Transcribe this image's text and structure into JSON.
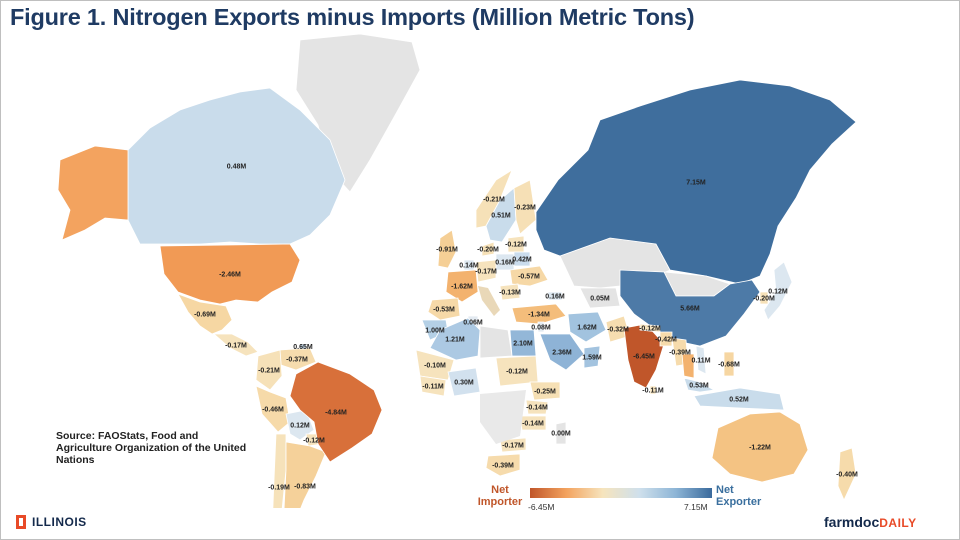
{
  "title": "Figure 1. Nitrogen Exports minus Imports (Million Metric Tons)",
  "source": "Source:  FAOStats,  Food and Agriculture Organization of the United Nations",
  "legend": {
    "min_title": "Net Importer",
    "max_title": "Net Exporter",
    "min_value": "-6.45M",
    "max_value": "7.15M",
    "colors": [
      "#c0562a",
      "#f3a35f",
      "#f6e4bd",
      "#cfe0ec",
      "#8db5d6",
      "#3a6a9c"
    ]
  },
  "colors": {
    "no_data": "#e4e4e4",
    "title": "#1f3b63",
    "importer": "#c0562a",
    "exporter": "#3a6a9c",
    "ocean": "#ffffff"
  },
  "logos": {
    "left": "ILLINOIS",
    "right_part1": "farmdoc",
    "right_part2": "DAILY"
  },
  "regions": [
    {
      "name": "Canada",
      "value": "0.48M",
      "color": "#c9dceb"
    },
    {
      "name": "Alaska",
      "value": "",
      "color": "#f3a35f"
    },
    {
      "name": "United States",
      "value": "-2.46M",
      "color": "#f19a55"
    },
    {
      "name": "Mexico",
      "value": "-0.69M",
      "color": "#f6d7a3"
    },
    {
      "name": "Central America",
      "value": "-0.17M",
      "color": "#f6e3bd"
    },
    {
      "name": "Venezuela",
      "value": "-0.37M",
      "color": "#f6dcae"
    },
    {
      "name": "Trinidad",
      "value": "0.65M",
      "color": "#c6dbeb"
    },
    {
      "name": "Colombia",
      "value": "-0.21M",
      "color": "#f6e1b8"
    },
    {
      "name": "Peru",
      "value": "-0.46M",
      "color": "#f6daa9"
    },
    {
      "name": "Bolivia",
      "value": "0.12M",
      "color": "#dce7f0"
    },
    {
      "name": "Chile",
      "value": "-0.19M",
      "color": "#f6e2ba"
    },
    {
      "name": "Paraguay",
      "value": "-0.12M",
      "color": "#f6e3bd"
    },
    {
      "name": "Argentina",
      "value": "-0.83M",
      "color": "#f5d19a"
    },
    {
      "name": "Brazil",
      "value": "-4.84M",
      "color": "#d8703a"
    },
    {
      "name": "Greenland",
      "value": "",
      "color": "#e4e4e4"
    },
    {
      "name": "Norway",
      "value": "-0.21M",
      "color": "#f6e1b8"
    },
    {
      "name": "Sweden",
      "value": "0.51M",
      "color": "#c9dceb"
    },
    {
      "name": "Finland",
      "value": "-0.23M",
      "color": "#f6e0b6"
    },
    {
      "name": "Denmark",
      "value": "-0.20M",
      "color": "#f6e1b8"
    },
    {
      "name": "Baltics",
      "value": "-0.12M",
      "color": "#f6e3bd"
    },
    {
      "name": "UK",
      "value": "-0.91M",
      "color": "#f5cf96"
    },
    {
      "name": "Netherlands",
      "value": "0.14M",
      "color": "#dce7f0"
    },
    {
      "name": "Poland",
      "value": "0.16M",
      "color": "#dce7f0"
    },
    {
      "name": "Belarus",
      "value": "0.42M",
      "color": "#cadced"
    },
    {
      "name": "Ukraine",
      "value": "-0.57M",
      "color": "#f6d8a6"
    },
    {
      "name": "France",
      "value": "-1.62M",
      "color": "#f3b26e"
    },
    {
      "name": "Germany",
      "value": "-0.17M",
      "color": "#f6e3bd"
    },
    {
      "name": "Romania",
      "value": "-0.13M",
      "color": "#f6e3bd"
    },
    {
      "name": "Spain",
      "value": "-0.53M",
      "color": "#f6d9a8"
    },
    {
      "name": "Turkey",
      "value": "-1.34M",
      "color": "#f4bd7b"
    },
    {
      "name": "Georgia",
      "value": "0.16M",
      "color": "#dce7f0"
    },
    {
      "name": "Kazakhstan",
      "value": "",
      "color": "#e4e4e4"
    },
    {
      "name": "Turkmenistan",
      "value": "0.05M",
      "color": "#e4e4e4"
    },
    {
      "name": "Russia",
      "value": "7.15M",
      "color": "#3f6e9d"
    },
    {
      "name": "China",
      "value": "5.66M",
      "color": "#4d7aa7"
    },
    {
      "name": "Mongolia",
      "value": "",
      "color": "#e4e4e4"
    },
    {
      "name": "Japan",
      "value": "0.12M",
      "color": "#dce7f0"
    },
    {
      "name": "Korea",
      "value": "-0.20M",
      "color": "#f6e1b8"
    },
    {
      "name": "Morocco",
      "value": "1.00M",
      "color": "#b4d0e6"
    },
    {
      "name": "Tunisia",
      "value": "0.06M",
      "color": "#e3eaf1"
    },
    {
      "name": "Algeria",
      "value": "1.21M",
      "color": "#acc9e3"
    },
    {
      "name": "Libya",
      "value": "",
      "color": "#e4e4e4"
    },
    {
      "name": "Egypt",
      "value": "2.10M",
      "color": "#93b7d8"
    },
    {
      "name": "Israel",
      "value": "0.08M",
      "color": "#e3eaf1"
    },
    {
      "name": "Iran",
      "value": "1.62M",
      "color": "#a2c3df"
    },
    {
      "name": "Saudi Arabia",
      "value": "2.36M",
      "color": "#8eb3d6"
    },
    {
      "name": "Oman",
      "value": "1.59M",
      "color": "#a3c3df"
    },
    {
      "name": "Pakistan",
      "value": "-0.32M",
      "color": "#f6ddb0"
    },
    {
      "name": "India",
      "value": "-6.45M",
      "color": "#c0562a"
    },
    {
      "name": "Nepal",
      "value": "-0.12M",
      "color": "#f6e3bd"
    },
    {
      "name": "Bangladesh",
      "value": "-0.42M",
      "color": "#f6dbab"
    },
    {
      "name": "Myanmar",
      "value": "-0.39M",
      "color": "#f6dbac"
    },
    {
      "name": "Thailand",
      "value": "",
      "color": "#f3b26e"
    },
    {
      "name": "Vietnam",
      "value": "0.11M",
      "color": "#dce7f0"
    },
    {
      "name": "Philippines",
      "value": "-0.68M",
      "color": "#f6d6a2"
    },
    {
      "name": "Malaysia",
      "value": "0.53M",
      "color": "#c9dceb"
    },
    {
      "name": "Indonesia",
      "value": "0.52M",
      "color": "#c9dceb"
    },
    {
      "name": "Sri Lanka",
      "value": "-0.11M",
      "color": "#f6e3bd"
    },
    {
      "name": "Mali",
      "value": "-0.10M",
      "color": "#f6e3bd"
    },
    {
      "name": "Nigeria",
      "value": "0.30M",
      "color": "#d2e1ee"
    },
    {
      "name": "Ivory Coast",
      "value": "-0.11M",
      "color": "#f6e3bd"
    },
    {
      "name": "Sudan",
      "value": "-0.12M",
      "color": "#f6e3bd"
    },
    {
      "name": "Ethiopia",
      "value": "-0.25M",
      "color": "#f6e0b5"
    },
    {
      "name": "Kenya",
      "value": "-0.14M",
      "color": "#f6e3bd"
    },
    {
      "name": "Tanzania",
      "value": "-0.14M",
      "color": "#f6e3bd"
    },
    {
      "name": "Zambia",
      "value": "-0.17M",
      "color": "#f6e3bd"
    },
    {
      "name": "Madagascar",
      "value": "0.00M",
      "color": "#e4e4e4"
    },
    {
      "name": "South Africa",
      "value": "-0.39M",
      "color": "#f6dbac"
    },
    {
      "name": "Australia",
      "value": "-1.22M",
      "color": "#f4c383"
    },
    {
      "name": "New Zealand",
      "value": "-0.40M",
      "color": "#f6dbab"
    }
  ]
}
